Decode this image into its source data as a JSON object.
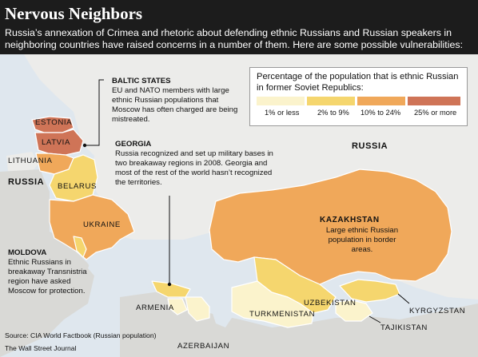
{
  "title": "Nervous Neighbors",
  "subtitle": "Russia’s annexation of Crimea and rhetoric about defending ethnic Russians and Russian speakers in neighboring countries have raised concerns in a number of them. Here are some possible vulnerabilities:",
  "legend": {
    "title": "Percentage of the population that is ethnic Russian in former Soviet Republics:",
    "items": [
      {
        "label": "1% or less",
        "color": "#fbf3cc"
      },
      {
        "label": "2% to 9%",
        "color": "#f5d66e"
      },
      {
        "label": "10% to 24%",
        "color": "#f0a85a"
      },
      {
        "label": "25% or more",
        "color": "#cf7457"
      }
    ]
  },
  "colors": {
    "russia": "#ececea",
    "sea": "#dfe7ee",
    "other_land": "#d9d9d6",
    "header_bg": "#1c1c1c",
    "border": "#ffffff"
  },
  "country_labels": {
    "russia_west": "RUSSIA",
    "russia_east": "RUSSIA",
    "estonia": "ESTONIA",
    "latvia": "LATVIA",
    "lithuania": "LITHUANIA",
    "belarus": "BELARUS",
    "ukraine": "UKRAINE",
    "kazakhstan": "KAZAKHSTAN",
    "uzbekistan": "UZBEKISTAN",
    "turkmenistan": "TURKMENISTAN",
    "kyrgyzstan": "KYRGYZSTAN",
    "tajikistan": "TAJIKISTAN",
    "armenia": "ARMENIA",
    "azerbaijan": "AZERBAIJAN"
  },
  "annotations": {
    "baltic": {
      "heading": "BALTIC STATES",
      "text": "EU and NATO members with large ethnic Russian populations that Moscow has often charged are being mistreated."
    },
    "georgia": {
      "heading": "GEORGIA",
      "text": "Russia recognized and set up military bases in two breakaway regions in 2008. Georgia and most of the rest of the world hasn’t recognized the territories."
    },
    "kazakhstan": {
      "text": "Large ethnic Russian population in border areas."
    },
    "moldova": {
      "heading": "MOLDOVA",
      "text": "Ethnic Russians in breakaway Transnistria region have asked Moscow for protection."
    }
  },
  "source": {
    "line1": "Source: CIA World Factbook (Russian population)",
    "line2": "The Wall Street Journal"
  }
}
